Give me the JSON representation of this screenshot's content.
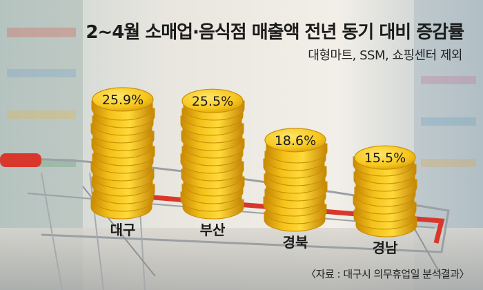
{
  "title": "2~4월 소매업·음식점 매출액 전년 동기 대비 증감률",
  "subtitle": "대형마트, SSM, 쇼핑센터 제외",
  "source": "〈자료 : 대구시 의무휴업일 분석결과〉",
  "colors": {
    "coin_fill": "#f3c21b",
    "coin_edge": "#c98f06",
    "coin_highlight": "#ffe45c",
    "cart_rail": "#d8382c"
  },
  "chart_data": {
    "type": "bar",
    "categories": [
      "대구",
      "부산",
      "경북",
      "경남"
    ],
    "values": [
      25.9,
      25.5,
      18.6,
      15.5
    ],
    "value_labels": [
      "25.9%",
      "25.5%",
      "18.6%",
      "15.5%"
    ],
    "title": "2~4월 소매업·음식점 매출액 전년 동기 대비 증감률",
    "xlabel": "",
    "ylabel": "",
    "unit": "%",
    "grid": false,
    "legend": "none"
  }
}
